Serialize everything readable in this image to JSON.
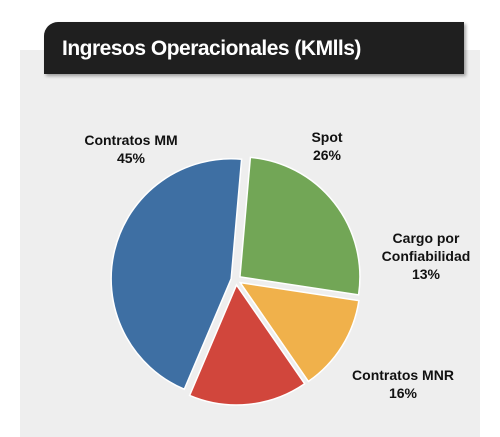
{
  "chart_data": {
    "type": "pie",
    "title": "Ingresos Operacionales (KMlls)",
    "categories": [
      "Spot",
      "Cargo por Confiabilidad",
      "Contratos MNR",
      "Contratos MM"
    ],
    "values": [
      26,
      13,
      16,
      45
    ],
    "value_labels": [
      "26%",
      "13%",
      "16%",
      "45%"
    ],
    "colors": [
      "#72a656",
      "#f0b14b",
      "#d1463c",
      "#3e6fa3"
    ]
  }
}
